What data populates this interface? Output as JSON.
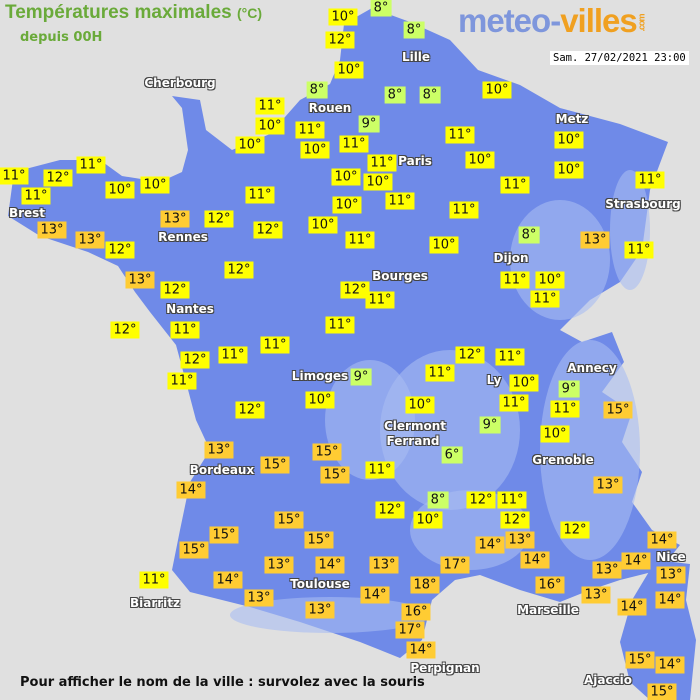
{
  "header": {
    "title": "Températures maximales",
    "unit": "(°C)",
    "subtitle": "depuis 00H"
  },
  "logo": {
    "main": "meteo-",
    "accent": "villes",
    "tld": ".com"
  },
  "timestamp": "Sam. 27/02/2021 23:00",
  "footer": "Pour afficher le nom de la ville : survolez avec la souris",
  "colors": {
    "sea": "#e0e0e0",
    "land": "#6f8ae8",
    "relief": "#a9bdf2",
    "cold": "#ccff66",
    "mild": "#ffff00",
    "warm": "#ffcc33"
  },
  "cities": [
    "Cherbourg",
    "Rouen",
    "Lille",
    "Paris",
    "Metz",
    "Strasbourg",
    "Brest",
    "Rennes",
    "Nantes",
    "Dijon",
    "Bourges",
    "Limoges",
    "Ly",
    "Annecy",
    "Clermont",
    "Ferrand",
    "Grenoble",
    "Bordeaux",
    "Toulouse",
    "Biarritz",
    "Marseille",
    "Perpignan",
    "Nice",
    "Ajaccio"
  ],
  "temperatures": [
    "10°",
    "8°",
    "12°",
    "8°",
    "10°",
    "10°",
    "8°",
    "8°",
    "8°",
    "11°",
    "10°",
    "11°",
    "9°",
    "10°",
    "10°",
    "11°",
    "11°",
    "11°",
    "10°",
    "10°",
    "10°",
    "11°",
    "11°",
    "12°",
    "11°",
    "10°",
    "10°",
    "10°",
    "10°",
    "11°",
    "11°",
    "11°",
    "11°",
    "13°",
    "12°",
    "12°",
    "10°",
    "10°",
    "11°",
    "13°",
    "13°",
    "12°",
    "11°",
    "10°",
    "8°",
    "13°",
    "11°",
    "12°",
    "13°",
    "12°",
    "12°",
    "11°",
    "11°",
    "10°",
    "11°",
    "12°",
    "11°",
    "11°",
    "11°",
    "11°",
    "12°",
    "11°",
    "9°",
    "12°",
    "11°",
    "11°",
    "10°",
    "9°",
    "11°",
    "11°",
    "10°",
    "10°",
    "15°",
    "12°",
    "13°",
    "9°",
    "10°",
    "15°",
    "15°",
    "6°",
    "15°",
    "11°",
    "14°",
    "13°",
    "8°",
    "12°",
    "10°",
    "12°",
    "11°",
    "12°",
    "12°",
    "15°",
    "15°",
    "15°",
    "14°",
    "13°",
    "14°",
    "14°",
    "13°",
    "15°",
    "13°",
    "14°",
    "13°",
    "17°",
    "14°",
    "13°",
    "11°",
    "14°",
    "16°",
    "13°",
    "14°",
    "14°",
    "18°",
    "14°",
    "13°",
    "13°",
    "16°",
    "17°",
    "14°",
    "15°",
    "14°",
    "15°"
  ]
}
